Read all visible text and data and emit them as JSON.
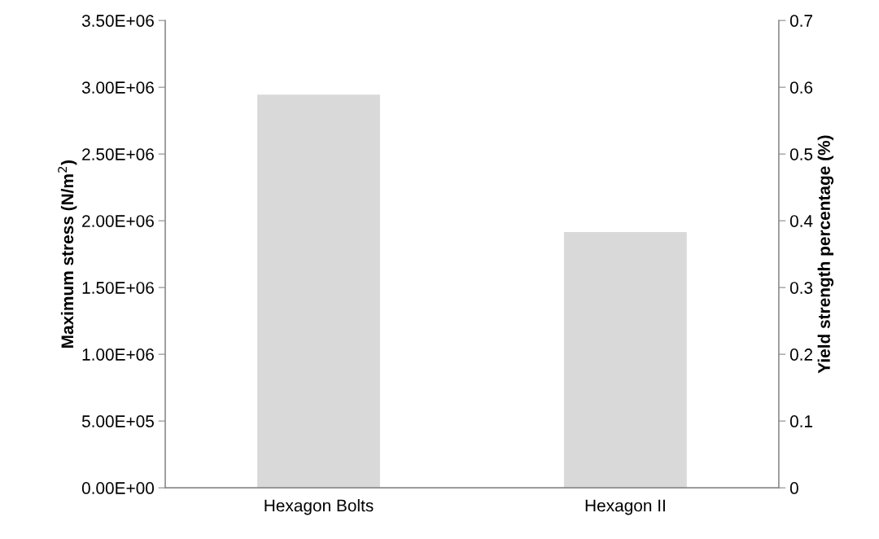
{
  "chart_data": {
    "type": "bar",
    "categories": [
      "Hexagon Bolts",
      "Hexagon II"
    ],
    "series": [
      {
        "color": "#d9d9d9",
        "values": [
          2945000,
          1915000
        ]
      }
    ],
    "ylabel": "Maximum stress (N/m$^{2}$)",
    "y2label": "Yield strength percentage (%)",
    "ylim": [
      0,
      3500000
    ],
    "yticks": [
      {
        "value": 0,
        "label": "0.00E+00"
      },
      {
        "value": 500000,
        "label": "5.00E+05"
      },
      {
        "value": 1000000,
        "label": "1.00E+06"
      },
      {
        "value": 1500000,
        "label": "1.50E+06"
      },
      {
        "value": 2000000,
        "label": "2.00E+06"
      },
      {
        "value": 2500000,
        "label": "2.50E+06"
      },
      {
        "value": 3000000,
        "label": "3.00E+06"
      },
      {
        "value": 3500000,
        "label": "3.50E+06"
      }
    ],
    "y2lim": [
      0,
      0.7
    ],
    "y2ticks": [
      0,
      0.1,
      0.2,
      0.3,
      0.4,
      0.5,
      0.6,
      0.7
    ],
    "grid": false,
    "legend": false
  }
}
